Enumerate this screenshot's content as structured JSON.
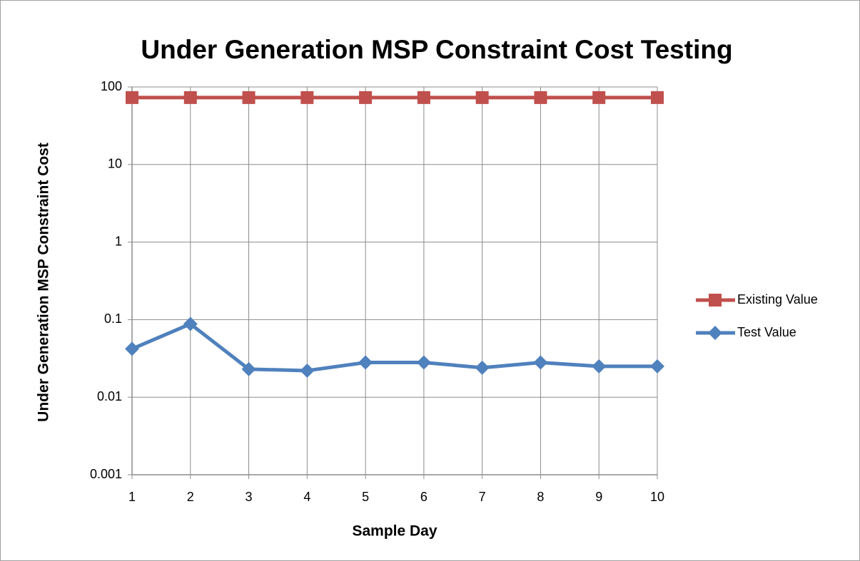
{
  "chart_data": {
    "type": "line",
    "title": "Under Generation MSP Constraint Cost Testing",
    "xlabel": "Sample Day",
    "ylabel": "Under Generation MSP Constraint Cost",
    "x": [
      1,
      2,
      3,
      4,
      5,
      6,
      7,
      8,
      9,
      10
    ],
    "xlim": [
      1,
      10
    ],
    "xticks": [
      1,
      2,
      3,
      4,
      5,
      6,
      7,
      8,
      9,
      10
    ],
    "ylim": [
      0.001,
      100
    ],
    "yticks": [
      100,
      10,
      1,
      0.1,
      0.01,
      0.001
    ],
    "yscale": "log",
    "grid": true,
    "legend": "right",
    "series": [
      {
        "name": "Existing Value",
        "color": "#c0504d",
        "marker": "square",
        "values": [
          73,
          73,
          73,
          73,
          73,
          73,
          73,
          73,
          73,
          73
        ]
      },
      {
        "name": "Test Value",
        "color": "#4f81bd",
        "marker": "diamond",
        "values": [
          0.042,
          0.088,
          0.023,
          0.022,
          0.028,
          0.028,
          0.024,
          0.028,
          0.025,
          0.025
        ]
      }
    ]
  }
}
